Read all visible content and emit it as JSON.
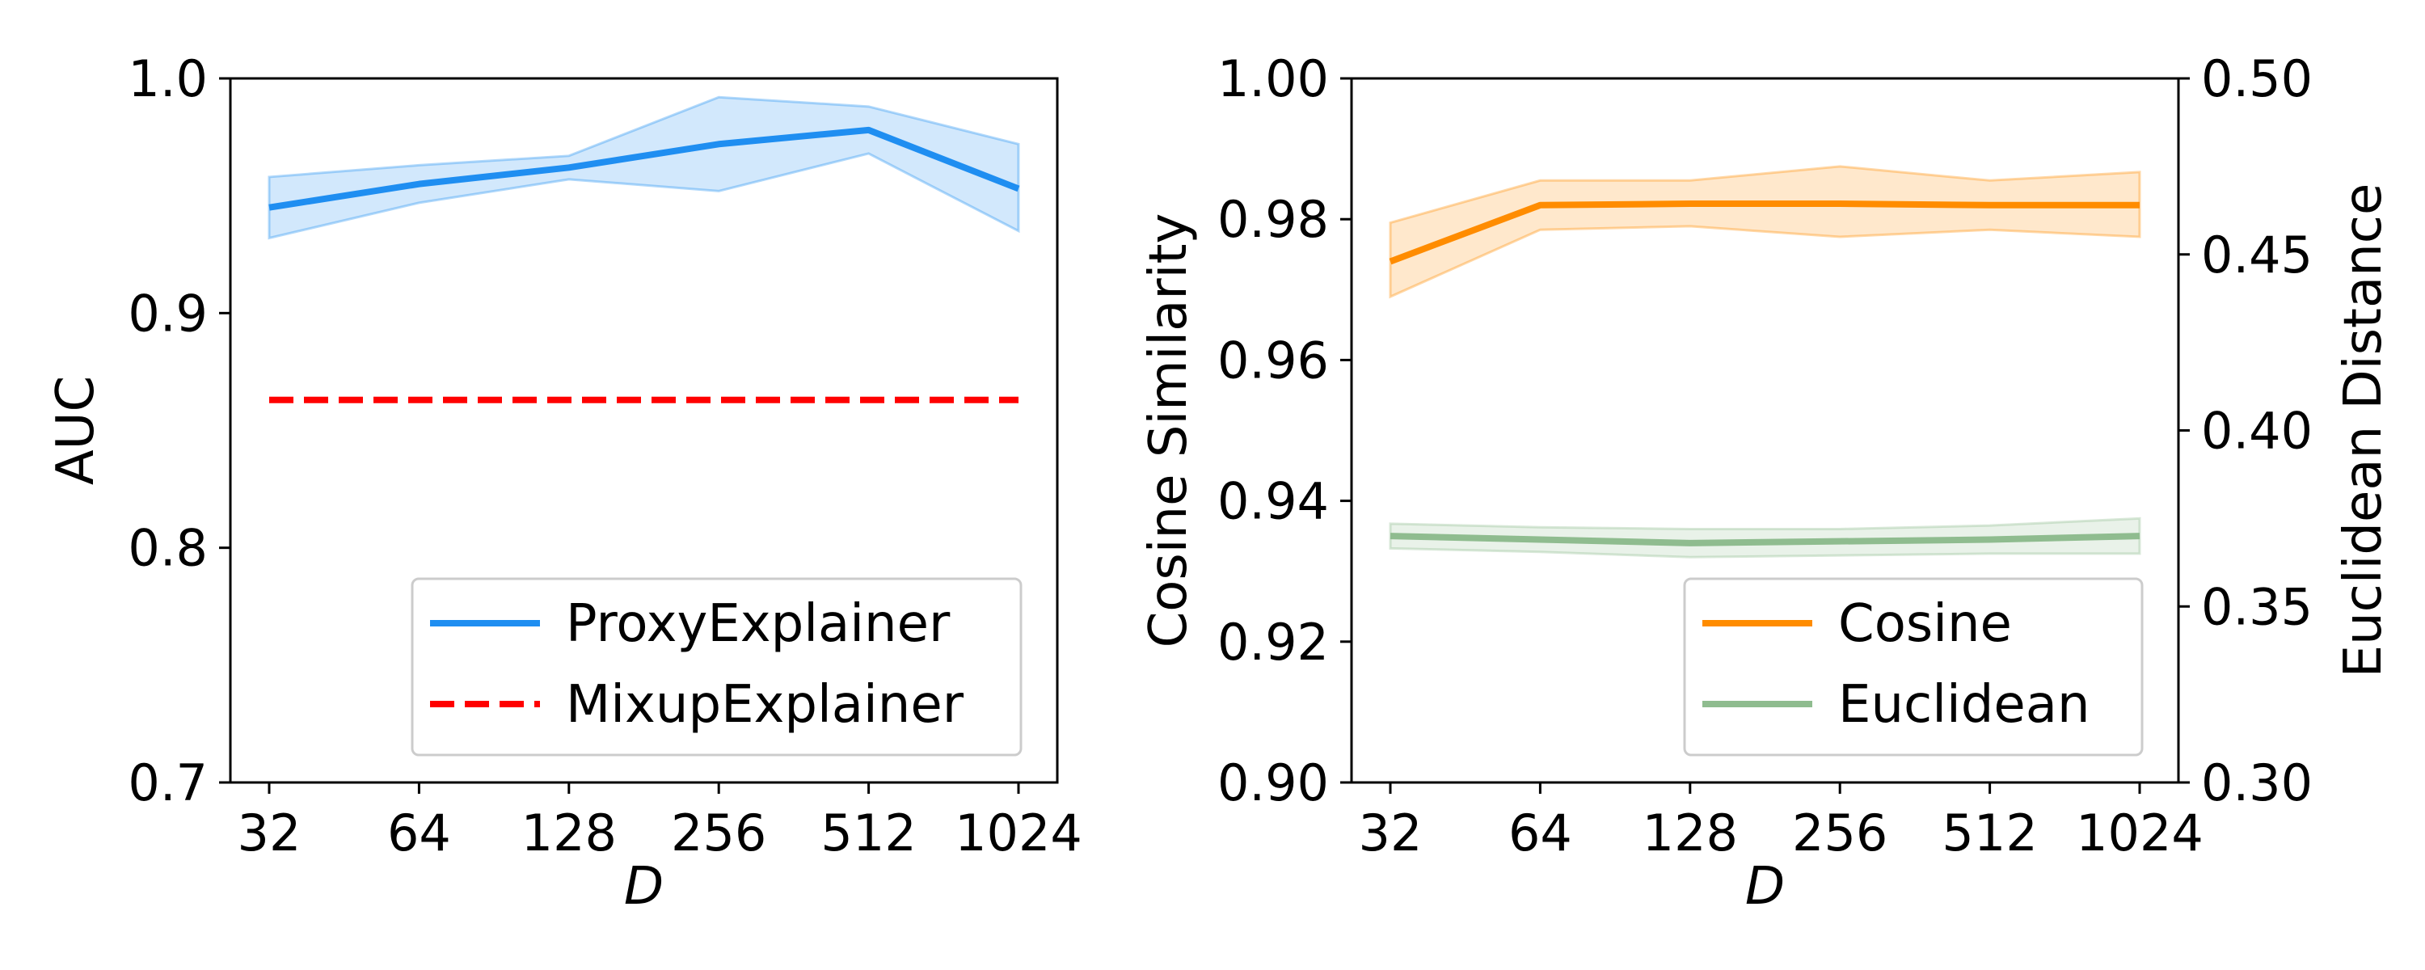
{
  "chart_data": [
    {
      "type": "line",
      "x": [
        "32",
        "64",
        "128",
        "256",
        "512",
        "1024"
      ],
      "xlabel": "D",
      "ylabel": "AUC",
      "ylim": [
        0.7,
        1.0
      ],
      "yticks": [
        "0.7",
        "0.8",
        "0.9",
        "1.0"
      ],
      "grid": false,
      "legend_position": "lower-right",
      "series": [
        {
          "name": "ProxyExplainer",
          "color": "#1f8ef1",
          "style": "solid",
          "values": [
            0.945,
            0.955,
            0.962,
            0.972,
            0.978,
            0.953
          ],
          "band_lower": [
            0.932,
            0.947,
            0.957,
            0.952,
            0.968,
            0.935
          ],
          "band_upper": [
            0.958,
            0.963,
            0.967,
            0.992,
            0.988,
            0.972
          ]
        },
        {
          "name": "MixupExplainer",
          "color": "#ff0000",
          "style": "dashed",
          "values": [
            0.863,
            0.863,
            0.863,
            0.863,
            0.863,
            0.863
          ]
        }
      ]
    },
    {
      "type": "line",
      "x": [
        "32",
        "64",
        "128",
        "256",
        "512",
        "1024"
      ],
      "xlabel": "D",
      "ylabel": "Cosine Similarity",
      "ylabel_right": "Euclidean Distance",
      "ylim": [
        0.9,
        1.0
      ],
      "yticks": [
        "0.90",
        "0.92",
        "0.94",
        "0.96",
        "0.98",
        "1.00"
      ],
      "ylim_right": [
        0.3,
        0.5
      ],
      "yticks_right": [
        "0.30",
        "0.35",
        "0.40",
        "0.45",
        "0.50"
      ],
      "grid": false,
      "legend_position": "lower-right",
      "series": [
        {
          "name": "Cosine",
          "axis": "left",
          "color": "#ff8c00",
          "style": "solid",
          "values": [
            0.974,
            0.982,
            0.9822,
            0.9822,
            0.982,
            0.982
          ],
          "band_lower": [
            0.969,
            0.9785,
            0.979,
            0.9775,
            0.9785,
            0.9775
          ],
          "band_upper": [
            0.9795,
            0.9855,
            0.9855,
            0.9875,
            0.9855,
            0.9867
          ]
        },
        {
          "name": "Euclidean",
          "axis": "right",
          "color": "#8fbc8f",
          "style": "solid",
          "values": [
            0.37,
            0.369,
            0.368,
            0.3685,
            0.369,
            0.37
          ],
          "band_lower": [
            0.3665,
            0.3655,
            0.364,
            0.3645,
            0.365,
            0.365
          ],
          "band_upper": [
            0.3735,
            0.3725,
            0.372,
            0.372,
            0.373,
            0.375
          ]
        }
      ]
    }
  ]
}
